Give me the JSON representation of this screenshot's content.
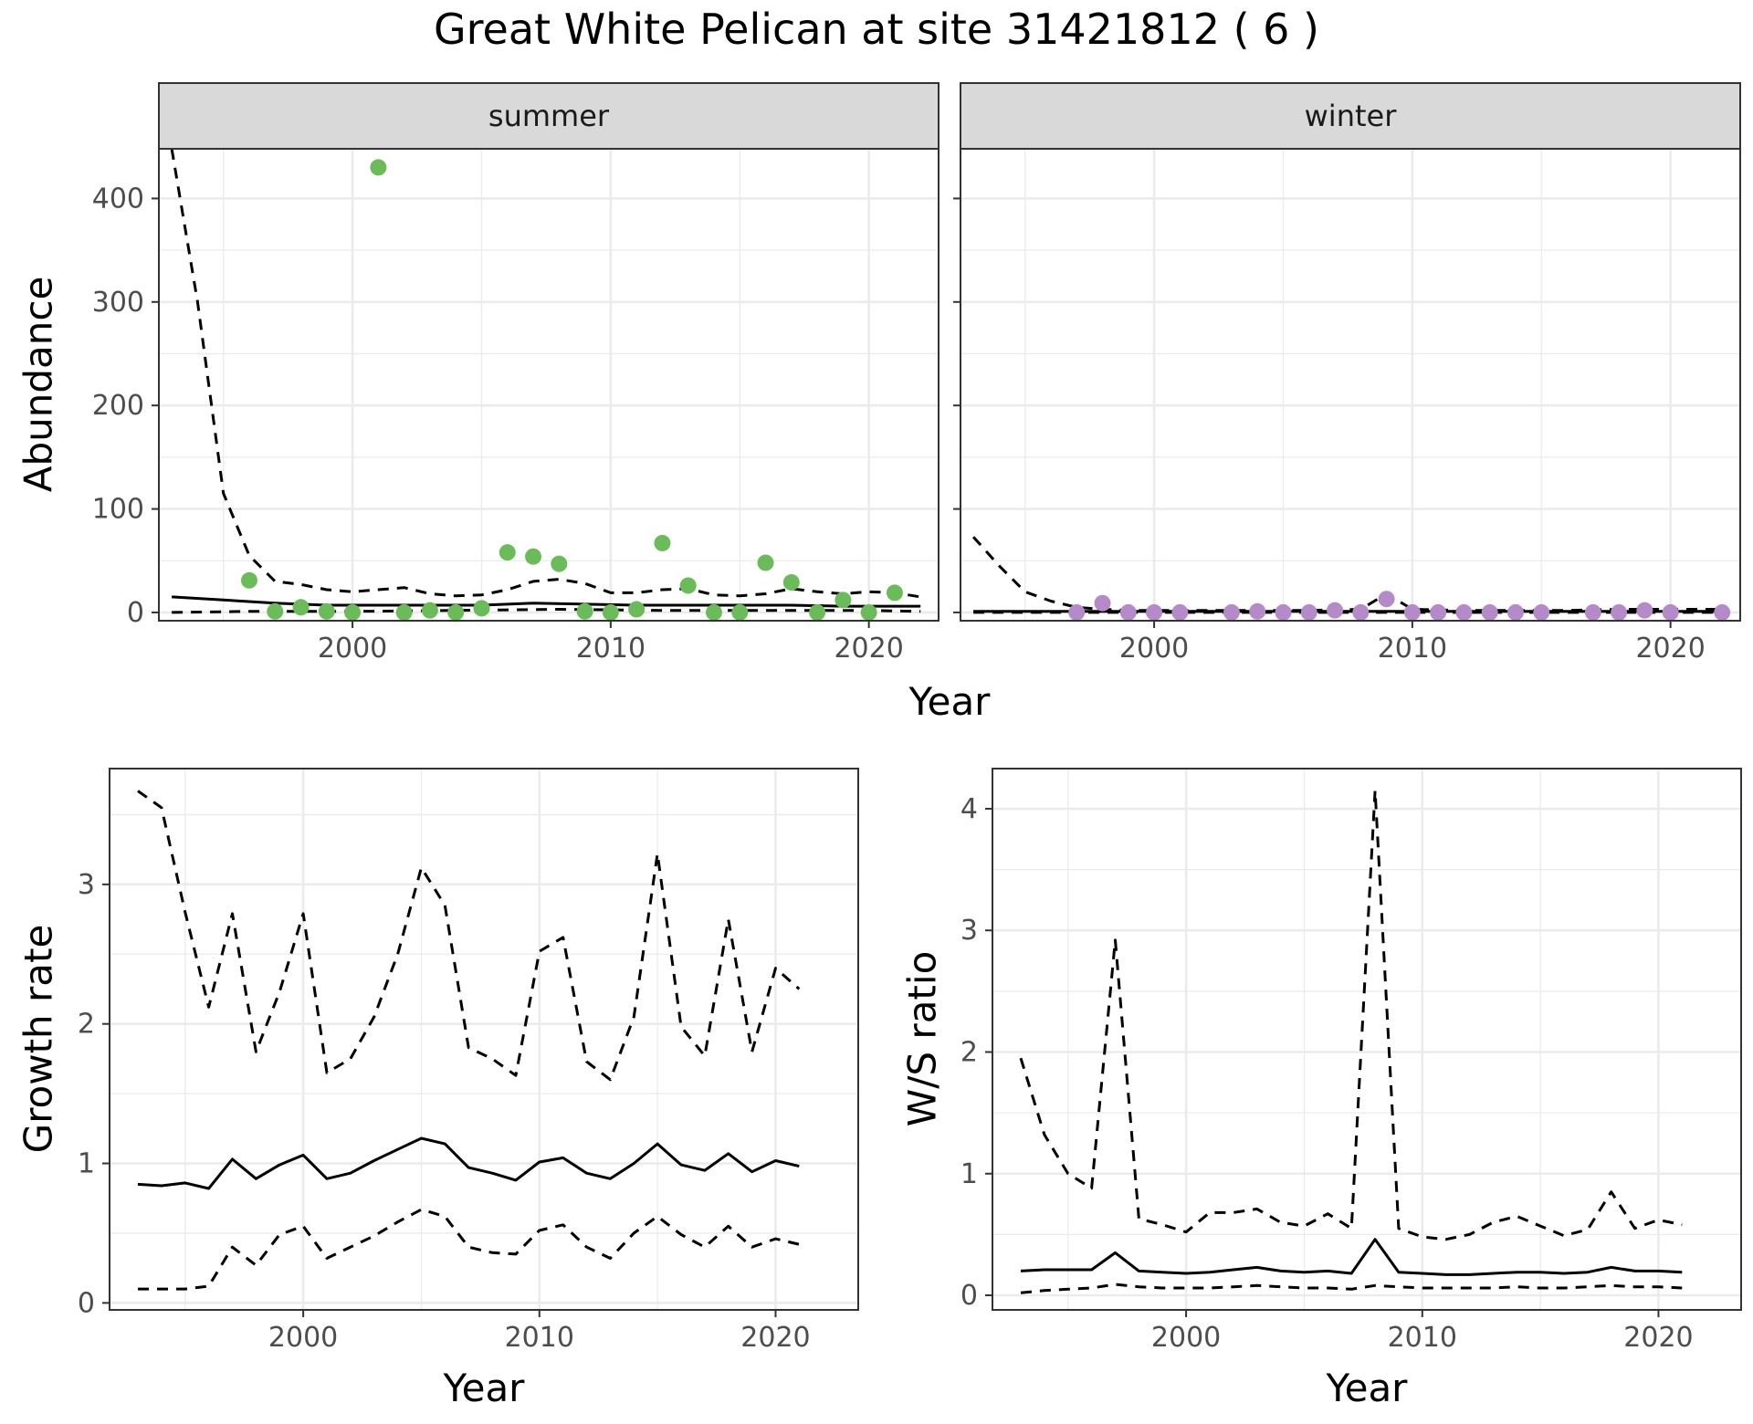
{
  "title": "Great White Pelican at site 31421812 ( 6 )",
  "colors": {
    "summer_points": "#6cbb5a",
    "winter_points": "#b58ac8",
    "line": "#000000",
    "strip_bg": "#d9d9d9",
    "grid": "#ebebeb",
    "panel_border": "#333333"
  },
  "chart_data": [
    {
      "id": "summer",
      "type": "scatter",
      "strip_label": "summer",
      "xlabel": "Year",
      "ylabel": "Abundance",
      "xlim": [
        1992.5,
        2022.7
      ],
      "ylim": [
        -8,
        448
      ],
      "x_ticks": [
        2000,
        2010,
        2020
      ],
      "y_ticks": [
        0,
        100,
        200,
        300,
        400
      ],
      "points": {
        "x": [
          1996,
          1997,
          1998,
          1999,
          2000,
          2001,
          2002,
          2003,
          2004,
          2005,
          2006,
          2007,
          2008,
          2009,
          2010,
          2011,
          2012,
          2013,
          2014,
          2015,
          2016,
          2017,
          2018,
          2019,
          2020,
          2021
        ],
        "y": [
          31,
          1,
          5,
          1,
          0,
          430,
          0,
          2,
          0,
          4,
          58,
          54,
          47,
          1,
          0,
          3,
          67,
          26,
          0,
          0,
          48,
          29,
          0,
          12,
          0,
          19
        ]
      },
      "series": [
        {
          "name": "fit",
          "style": "solid",
          "x": [
            1993,
            1995,
            1997,
            1999,
            2001,
            2003,
            2005,
            2007,
            2009,
            2011,
            2013,
            2015,
            2017,
            2019,
            2021,
            2022
          ],
          "y": [
            15,
            12,
            9,
            7,
            7,
            7,
            7,
            9,
            8,
            7,
            7,
            7,
            7,
            6,
            6,
            6
          ]
        },
        {
          "name": "upper",
          "style": "dashed",
          "x": [
            1993,
            1994,
            1995,
            1996,
            1997,
            1998,
            1999,
            2000,
            2001,
            2002,
            2003,
            2004,
            2005,
            2006,
            2007,
            2008,
            2009,
            2010,
            2011,
            2012,
            2013,
            2014,
            2015,
            2016,
            2017,
            2018,
            2019,
            2020,
            2021,
            2022
          ],
          "y": [
            448,
            300,
            115,
            55,
            30,
            27,
            22,
            20,
            22,
            24,
            18,
            16,
            17,
            22,
            30,
            32,
            28,
            19,
            19,
            22,
            23,
            17,
            16,
            18,
            23,
            20,
            18,
            20,
            19,
            15
          ]
        },
        {
          "name": "lower",
          "style": "dashed",
          "x": [
            1993,
            1996,
            2000,
            2004,
            2008,
            2012,
            2016,
            2020,
            2022
          ],
          "y": [
            0,
            1,
            1,
            2,
            3,
            2,
            2,
            2,
            1
          ]
        }
      ]
    },
    {
      "id": "winter",
      "type": "scatter",
      "strip_label": "winter",
      "xlabel": "Year",
      "ylabel": "Abundance",
      "xlim": [
        1992.5,
        2022.7
      ],
      "ylim": [
        -8,
        448
      ],
      "x_ticks": [
        2000,
        2010,
        2020
      ],
      "y_ticks": [
        0,
        100,
        200,
        300,
        400
      ],
      "points": {
        "x": [
          1997,
          1998,
          1999,
          2000,
          2001,
          2003,
          2004,
          2005,
          2006,
          2007,
          2008,
          2009,
          2010,
          2011,
          2012,
          2013,
          2014,
          2015,
          2017,
          2018,
          2019,
          2020,
          2022
        ],
        "y": [
          0,
          9,
          0,
          0,
          0,
          0,
          1,
          0,
          0,
          2,
          0,
          13,
          0,
          0,
          0,
          0,
          0,
          0,
          0,
          0,
          2,
          0,
          0
        ]
      },
      "series": [
        {
          "name": "fit",
          "style": "solid",
          "x": [
            1993,
            1997,
            2001,
            2005,
            2009,
            2013,
            2017,
            2022
          ],
          "y": [
            1,
            1,
            1,
            1,
            1,
            1,
            1,
            1
          ]
        },
        {
          "name": "upper",
          "style": "dashed",
          "x": [
            1993,
            1994,
            1995,
            1996,
            1997,
            1998,
            1999,
            2000,
            2002,
            2004,
            2006,
            2008,
            2009,
            2010,
            2012,
            2014,
            2016,
            2018,
            2020,
            2022
          ],
          "y": [
            73,
            45,
            20,
            11,
            5,
            3,
            2,
            2,
            2,
            2,
            2,
            3,
            18,
            3,
            2,
            2,
            2,
            3,
            3,
            3
          ]
        },
        {
          "name": "lower",
          "style": "dashed",
          "x": [
            1993,
            2000,
            2010,
            2022
          ],
          "y": [
            0,
            0,
            0,
            0
          ]
        }
      ]
    },
    {
      "id": "growth",
      "type": "line",
      "xlabel": "Year",
      "ylabel": "Growth rate",
      "xlim": [
        1991.8,
        2023.5
      ],
      "ylim": [
        -0.05,
        3.83
      ],
      "x_ticks": [
        2000,
        2010,
        2020
      ],
      "y_ticks": [
        0,
        1,
        2,
        3
      ],
      "series": [
        {
          "name": "fit",
          "style": "solid",
          "x": [
            1993,
            1994,
            1995,
            1996,
            1997,
            1998,
            1999,
            2000,
            2001,
            2002,
            2003,
            2004,
            2005,
            2006,
            2007,
            2008,
            2009,
            2010,
            2011,
            2012,
            2013,
            2014,
            2015,
            2016,
            2017,
            2018,
            2019,
            2020,
            2021
          ],
          "y": [
            0.85,
            0.84,
            0.86,
            0.82,
            1.03,
            0.89,
            0.99,
            1.06,
            0.89,
            0.93,
            1.02,
            1.1,
            1.18,
            1.14,
            0.97,
            0.93,
            0.88,
            1.01,
            1.04,
            0.93,
            0.89,
            1.0,
            1.14,
            0.99,
            0.95,
            1.07,
            0.94,
            1.02,
            0.98
          ]
        },
        {
          "name": "upper",
          "style": "dashed",
          "x": [
            1993,
            1994,
            1995,
            1996,
            1997,
            1998,
            1999,
            2000,
            2001,
            2002,
            2003,
            2004,
            2005,
            2006,
            2007,
            2008,
            2009,
            2010,
            2011,
            2012,
            2013,
            2014,
            2015,
            2016,
            2017,
            2018,
            2019,
            2020,
            2021
          ],
          "y": [
            3.67,
            3.55,
            2.8,
            2.12,
            2.79,
            1.8,
            2.23,
            2.79,
            1.65,
            1.75,
            2.05,
            2.5,
            3.12,
            2.85,
            1.83,
            1.75,
            1.63,
            2.52,
            2.62,
            1.73,
            1.6,
            2.05,
            3.22,
            1.98,
            1.77,
            2.75,
            1.8,
            2.4,
            2.25
          ]
        },
        {
          "name": "lower",
          "style": "dashed",
          "x": [
            1993,
            1994,
            1995,
            1996,
            1997,
            1998,
            1999,
            2000,
            2001,
            2002,
            2003,
            2004,
            2005,
            2006,
            2007,
            2008,
            2009,
            2010,
            2011,
            2012,
            2013,
            2014,
            2015,
            2016,
            2017,
            2018,
            2019,
            2020,
            2021
          ],
          "y": [
            0.1,
            0.1,
            0.1,
            0.12,
            0.4,
            0.27,
            0.49,
            0.55,
            0.32,
            0.4,
            0.48,
            0.58,
            0.67,
            0.62,
            0.4,
            0.36,
            0.35,
            0.52,
            0.56,
            0.4,
            0.32,
            0.5,
            0.62,
            0.49,
            0.4,
            0.55,
            0.4,
            0.46,
            0.42
          ]
        }
      ]
    },
    {
      "id": "ratio",
      "type": "line",
      "xlabel": "Year",
      "ylabel": "W/S ratio",
      "xlim": [
        1991.8,
        2023.5
      ],
      "ylim": [
        -0.12,
        4.33
      ],
      "x_ticks": [
        2000,
        2010,
        2020
      ],
      "y_ticks": [
        0,
        1,
        2,
        3,
        4
      ],
      "series": [
        {
          "name": "fit",
          "style": "solid",
          "x": [
            1993,
            1994,
            1995,
            1996,
            1997,
            1998,
            1999,
            2000,
            2001,
            2002,
            2003,
            2004,
            2005,
            2006,
            2007,
            2008,
            2009,
            2010,
            2011,
            2012,
            2013,
            2014,
            2015,
            2016,
            2017,
            2018,
            2019,
            2020,
            2021
          ],
          "y": [
            0.2,
            0.21,
            0.21,
            0.21,
            0.35,
            0.2,
            0.19,
            0.18,
            0.19,
            0.21,
            0.23,
            0.2,
            0.19,
            0.2,
            0.18,
            0.46,
            0.19,
            0.18,
            0.17,
            0.17,
            0.18,
            0.19,
            0.19,
            0.18,
            0.19,
            0.23,
            0.2,
            0.2,
            0.19
          ]
        },
        {
          "name": "upper",
          "style": "dashed",
          "x": [
            1993,
            1994,
            1995,
            1996,
            1997,
            1998,
            1999,
            2000,
            2001,
            2002,
            2003,
            2004,
            2005,
            2006,
            2007,
            2008,
            2009,
            2010,
            2011,
            2012,
            2013,
            2014,
            2015,
            2016,
            2017,
            2018,
            2019,
            2020,
            2021
          ],
          "y": [
            1.95,
            1.32,
            1.0,
            0.88,
            2.92,
            0.63,
            0.58,
            0.52,
            0.68,
            0.68,
            0.71,
            0.6,
            0.57,
            0.67,
            0.55,
            4.15,
            0.55,
            0.48,
            0.46,
            0.5,
            0.6,
            0.65,
            0.57,
            0.49,
            0.54,
            0.85,
            0.55,
            0.62,
            0.58
          ]
        },
        {
          "name": "lower",
          "style": "dashed",
          "x": [
            1993,
            1994,
            1995,
            1996,
            1997,
            1998,
            1999,
            2000,
            2001,
            2002,
            2003,
            2004,
            2005,
            2006,
            2007,
            2008,
            2009,
            2010,
            2011,
            2012,
            2013,
            2014,
            2015,
            2016,
            2017,
            2018,
            2019,
            2020,
            2021
          ],
          "y": [
            0.02,
            0.04,
            0.05,
            0.06,
            0.09,
            0.07,
            0.06,
            0.06,
            0.06,
            0.07,
            0.08,
            0.07,
            0.06,
            0.06,
            0.05,
            0.08,
            0.07,
            0.06,
            0.06,
            0.06,
            0.06,
            0.07,
            0.06,
            0.06,
            0.07,
            0.08,
            0.07,
            0.07,
            0.06
          ]
        }
      ]
    }
  ]
}
